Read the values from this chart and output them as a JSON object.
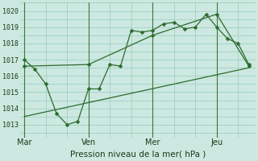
{
  "bg_color": "#cce8e0",
  "grid_color": "#99ccbb",
  "line_color": "#2d6b2d",
  "xlabel": "Pression niveau de la mer( hPa )",
  "ylim": [
    1012.2,
    1020.5
  ],
  "yticks": [
    1013,
    1014,
    1015,
    1016,
    1017,
    1018,
    1019,
    1020
  ],
  "xtick_labels": [
    "Mar",
    "Ven",
    "Mer",
    "Jeu"
  ],
  "xtick_positions": [
    0,
    30,
    60,
    90
  ],
  "vline_positions": [
    0,
    30,
    60,
    90
  ],
  "xlim": [
    -2,
    108
  ],
  "line1_x": [
    0,
    5,
    10,
    15,
    20,
    25,
    30,
    35,
    40,
    45,
    50,
    55,
    60,
    65,
    70,
    75,
    80,
    85,
    90,
    95,
    100,
    105
  ],
  "line1_y": [
    1017.0,
    1016.4,
    1015.5,
    1013.7,
    1013.0,
    1013.2,
    1015.2,
    1015.2,
    1016.7,
    1016.6,
    1018.8,
    1018.7,
    1018.8,
    1019.2,
    1019.3,
    1018.9,
    1019.0,
    1019.8,
    1019.0,
    1018.3,
    1018.0,
    1016.7
  ],
  "line2_x": [
    0,
    30,
    60,
    90,
    105
  ],
  "line2_y": [
    1016.6,
    1016.7,
    1018.5,
    1019.8,
    1016.6
  ],
  "line3_x": [
    0,
    105
  ],
  "line3_y": [
    1013.5,
    1016.5
  ],
  "marker": "D",
  "markersize": 2.5,
  "linewidth": 0.9
}
